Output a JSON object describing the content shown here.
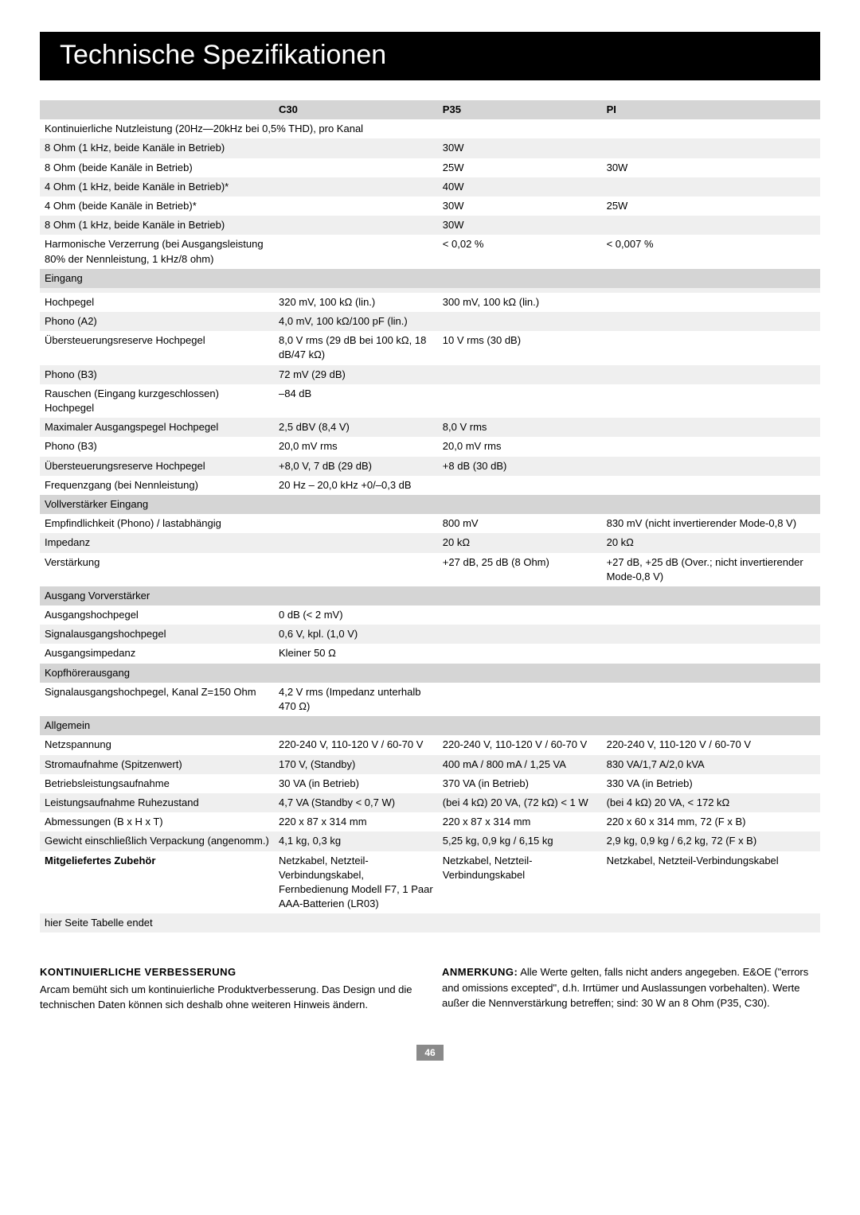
{
  "title": "Technische Spezifikationen",
  "headers": {
    "c30": "C30",
    "p35": "P35",
    "pi": "PI"
  },
  "rows": [
    {
      "type": "span",
      "label": "Kontinuierliche Nutzleistung (20Hz—20kHz bei 0,5% THD), pro Kanal"
    },
    {
      "type": "stripe",
      "label": "8 Ohm (1 kHz, beide Kanäle in Betrieb)",
      "c30": "",
      "p35": "30W",
      "pi": ""
    },
    {
      "type": "plain",
      "label": "8 Ohm (beide Kanäle in Betrieb)",
      "c30": "",
      "p35": "25W",
      "pi": "30W"
    },
    {
      "type": "stripe",
      "label": "4 Ohm (1 kHz, beide Kanäle in Betrieb)*",
      "c30": "",
      "p35": "40W",
      "pi": ""
    },
    {
      "type": "plain",
      "label": "4 Ohm (beide Kanäle in Betrieb)*",
      "c30": "",
      "p35": "30W",
      "pi": "25W"
    },
    {
      "type": "stripe",
      "label": "8 Ohm (1 kHz, beide Kanäle in Betrieb)",
      "c30": "",
      "p35": "30W",
      "pi": ""
    },
    {
      "type": "plain",
      "label": "Harmonische Verzerrung (bei Ausgangsleistung 80% der Nennleistung, 1 kHz/8 ohm)",
      "c30": "",
      "p35": "< 0,02 %",
      "pi": "< 0,007 %"
    },
    {
      "type": "section",
      "label": "Eingang"
    },
    {
      "type": "stripe",
      "label": "",
      "c30": "",
      "p35": "",
      "pi": ""
    },
    {
      "type": "plain",
      "label": "Hochpegel",
      "c30": "320 mV, 100 kΩ (lin.)",
      "p35": "300 mV, 100 kΩ (lin.)",
      "pi": ""
    },
    {
      "type": "stripe",
      "label": "Phono (A2)",
      "c30": "4,0 mV, 100 kΩ/100 pF (lin.)",
      "p35": "",
      "pi": ""
    },
    {
      "type": "plain",
      "label": "Übersteuerungsreserve Hochpegel",
      "c30": "8,0 V rms (29 dB bei 100 kΩ, 18 dB/47 kΩ)",
      "p35": "10 V rms (30 dB)",
      "pi": ""
    },
    {
      "type": "stripe",
      "label": "Phono (B3)",
      "c30": "72 mV (29 dB)",
      "p35": "",
      "pi": ""
    },
    {
      "type": "plain",
      "label": "Rauschen (Eingang kurzgeschlossen) Hochpegel",
      "c30": "–84 dB",
      "p35": "",
      "pi": ""
    },
    {
      "type": "stripe",
      "label": "Maximaler Ausgangspegel Hochpegel",
      "c30": "2,5 dBV (8,4 V)",
      "p35": "8,0 V rms",
      "pi": ""
    },
    {
      "type": "plain",
      "label": "Phono (B3)",
      "c30": "20,0 mV rms",
      "p35": "20,0 mV rms",
      "pi": ""
    },
    {
      "type": "stripe",
      "label": "Übersteuerungsreserve Hochpegel",
      "c30": "+8,0 V, 7 dB (29 dB)",
      "p35": "+8 dB (30 dB)",
      "pi": ""
    },
    {
      "type": "plain",
      "label": "Frequenzgang (bei Nennleistung)",
      "c30": "20 Hz – 20,0 kHz +0/–0,3 dB",
      "p35": "",
      "pi": ""
    },
    {
      "type": "section",
      "label": "Vollverstärker Eingang"
    },
    {
      "type": "plain",
      "label": "Empfindlichkeit (Phono) / lastabhängig",
      "c30": "",
      "p35": "800 mV",
      "pi": "830 mV (nicht invertierender Mode-0,8 V)"
    },
    {
      "type": "stripe",
      "label": "Impedanz",
      "c30": "",
      "p35": "20 kΩ",
      "pi": "20 kΩ"
    },
    {
      "type": "plain",
      "label": "Verstärkung",
      "c30": "",
      "p35": "+27 dB, 25 dB (8 Ohm)",
      "pi": "+27 dB, +25 dB (Over.; nicht invertierender Mode-0,8 V)"
    },
    {
      "type": "section",
      "label": "Ausgang Vorverstärker"
    },
    {
      "type": "plain",
      "label": "Ausgangshochpegel",
      "c30": "0 dB (< 2 mV)",
      "p35": "",
      "pi": ""
    },
    {
      "type": "stripe",
      "label": "Signalausgangshochpegel",
      "c30": "0,6 V, kpl. (1,0 V)",
      "p35": "",
      "pi": ""
    },
    {
      "type": "plain",
      "label": "Ausgangsimpedanz",
      "c30": "Kleiner 50 Ω",
      "p35": "",
      "pi": ""
    },
    {
      "type": "section",
      "label": "Kopfhörerausgang"
    },
    {
      "type": "plain",
      "label": "Signalausgangshochpegel, Kanal Z=150 Ohm",
      "c30": "4,2 V rms (Impedanz unterhalb 470 Ω)",
      "p35": "",
      "pi": ""
    },
    {
      "type": "section",
      "label": "Allgemein"
    },
    {
      "type": "plain",
      "label": "Netzspannung",
      "c30": "220-240 V, 110-120 V / 60-70 V",
      "p35": "220-240 V, 110-120 V / 60-70 V",
      "pi": "220-240 V, 110-120 V / 60-70 V"
    },
    {
      "type": "stripe",
      "label": "Stromaufnahme (Spitzenwert)",
      "c30": "170 V, (Standby)",
      "p35": "400 mA / 800 mA / 1,25 VA",
      "p35b": "",
      "pi": "830 VA/1,7 A/2,0 kVA"
    },
    {
      "type": "plain",
      "label": "Betriebsleistungsaufnahme",
      "c30": "30 VA (in Betrieb)",
      "p35": "370 VA (in Betrieb)",
      "pi": "330 VA (in Betrieb)"
    },
    {
      "type": "stripe",
      "label": "Leistungsaufnahme Ruhezustand",
      "c30": "4,7 VA (Standby < 0,7 W)",
      "p35": "(bei 4 kΩ) 20 VA, (72 kΩ) < 1 W",
      "pi": "(bei 4 kΩ) 20 VA, < 172 kΩ"
    },
    {
      "type": "plain",
      "label": "Abmessungen (B x H x T)",
      "c30": "220 x 87 x 314 mm",
      "p35": "220 x 87 x 314 mm",
      "pi": "220 x 60 x 314 mm, 72 (F x B)"
    },
    {
      "type": "stripe",
      "label": "Gewicht einschließlich Verpackung (angenomm.)",
      "c30": "4,1 kg, 0,3 kg",
      "p35": "5,25 kg, 0,9 kg / 6,15 kg",
      "pi": "2,9 kg, 0,9 kg / 6,2 kg, 72 (F x B)"
    },
    {
      "type": "plain-bold",
      "label": "Mitgeliefertes Zubehör",
      "c30": "Netzkabel, Netzteil-Verbindungskabel, Fernbedienung Modell F7, 1 Paar AAA-Batterien (LR03)",
      "p35": "Netzkabel, Netzteil-Verbindungskabel",
      "pi": "Netzkabel, Netzteil-Verbindungskabel"
    },
    {
      "type": "stripe",
      "label": "hier Seite Tabelle endet",
      "c30": "",
      "p35": "",
      "pi": ""
    }
  ],
  "footer": {
    "left_head": "KONTINUIERLICHE VERBESSERUNG",
    "left_body": "Arcam bemüht sich um kontinuierliche Produktverbesserung. Das Design und die technischen Daten können sich deshalb ohne weiteren Hinweis ändern.",
    "right_head": "ANMERKUNG:",
    "right_body": "Alle Werte gelten, falls nicht anders angegeben. E&OE (\"errors and omissions excepted\", d.h. Irrtümer und Auslassungen vorbehalten). Werte außer die Nennverstärkung betreffen; sind: 30 W an 8 Ohm (P35, C30)."
  },
  "page_number": "46"
}
